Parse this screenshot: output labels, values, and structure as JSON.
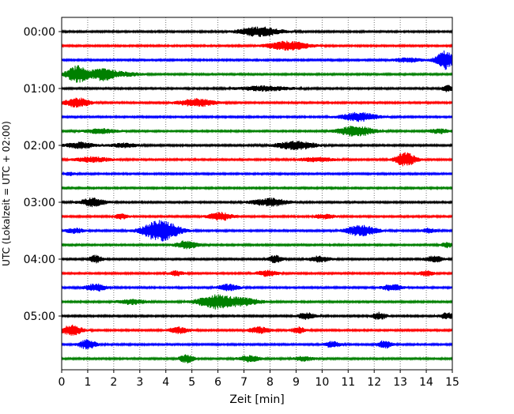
{
  "chart_data": {
    "type": "line",
    "xlabel": "Zeit  [min]",
    "ylabel": "UTC (Lokalzeit = UTC + 02:00)",
    "xlim": [
      0,
      15
    ],
    "x_ticks": [
      "0",
      "1",
      "2",
      "3",
      "4",
      "5",
      "6",
      "7",
      "8",
      "9",
      "10",
      "11",
      "12",
      "13",
      "14",
      "15"
    ],
    "y_ticks": [
      {
        "label": "00:00",
        "trace": 0
      },
      {
        "label": "01:00",
        "trace": 4
      },
      {
        "label": "02:00",
        "trace": 8
      },
      {
        "label": "03:00",
        "trace": 12
      },
      {
        "label": "04:00",
        "trace": 16
      },
      {
        "label": "05:00",
        "trace": 20
      }
    ],
    "grid": "vertical dotted at each minute",
    "trace_interval_min": 15,
    "trace_count": 24,
    "colors": [
      "#000000",
      "#ff0000",
      "#0000ff",
      "#008000"
    ],
    "traces": [
      {
        "start": "00:00",
        "color": "#000000",
        "events": [
          {
            "t": 7.6,
            "amp": 0.9,
            "w": 1.2
          }
        ]
      },
      {
        "start": "00:15",
        "color": "#ff0000",
        "events": [
          {
            "t": 8.7,
            "amp": 0.85,
            "w": 1.2
          }
        ]
      },
      {
        "start": "00:30",
        "color": "#0000ff",
        "events": [
          {
            "t": 14.7,
            "amp": 1.8,
            "w": 0.5
          },
          {
            "t": 13.3,
            "amp": 0.4,
            "w": 0.8
          }
        ]
      },
      {
        "start": "00:45",
        "color": "#008000",
        "events": [
          {
            "t": 0.6,
            "amp": 1.6,
            "w": 0.6
          },
          {
            "t": 1.6,
            "amp": 1.2,
            "w": 0.7
          },
          {
            "t": 2.5,
            "amp": 0.4,
            "w": 0.8
          }
        ]
      },
      {
        "start": "01:00",
        "color": "#000000",
        "events": [
          {
            "t": 7.8,
            "amp": 0.45,
            "w": 1.5
          },
          {
            "t": 14.8,
            "amp": 0.6,
            "w": 0.3
          }
        ]
      },
      {
        "start": "01:15",
        "color": "#ff0000",
        "events": [
          {
            "t": 0.6,
            "amp": 0.9,
            "w": 0.7
          },
          {
            "t": 5.2,
            "amp": 0.75,
            "w": 1.0
          }
        ]
      },
      {
        "start": "01:30",
        "color": "#0000ff",
        "events": [
          {
            "t": 11.4,
            "amp": 0.85,
            "w": 1.0
          }
        ]
      },
      {
        "start": "01:45",
        "color": "#008000",
        "events": [
          {
            "t": 11.3,
            "amp": 1.0,
            "w": 1.0
          },
          {
            "t": 1.5,
            "amp": 0.45,
            "w": 0.9
          },
          {
            "t": 14.5,
            "amp": 0.45,
            "w": 0.6
          }
        ]
      },
      {
        "start": "02:00",
        "color": "#000000",
        "events": [
          {
            "t": 9.0,
            "amp": 0.8,
            "w": 1.1
          },
          {
            "t": 0.7,
            "amp": 0.6,
            "w": 0.8
          },
          {
            "t": 2.4,
            "amp": 0.4,
            "w": 0.8
          }
        ]
      },
      {
        "start": "02:15",
        "color": "#ff0000",
        "events": [
          {
            "t": 13.2,
            "amp": 1.3,
            "w": 0.6
          },
          {
            "t": 1.2,
            "amp": 0.5,
            "w": 1.0
          },
          {
            "t": 9.8,
            "amp": 0.4,
            "w": 1.0
          }
        ]
      },
      {
        "start": "02:30",
        "color": "#0000ff",
        "events": [
          {
            "t": 0.3,
            "amp": 0.3,
            "w": 0.3
          }
        ]
      },
      {
        "start": "02:45",
        "color": "#008000",
        "events": []
      },
      {
        "start": "03:00",
        "color": "#000000",
        "events": [
          {
            "t": 1.2,
            "amp": 0.8,
            "w": 0.7
          },
          {
            "t": 8.0,
            "amp": 0.75,
            "w": 1.0
          }
        ]
      },
      {
        "start": "03:15",
        "color": "#ff0000",
        "events": [
          {
            "t": 6.1,
            "amp": 0.75,
            "w": 0.7
          },
          {
            "t": 2.3,
            "amp": 0.5,
            "w": 0.4
          },
          {
            "t": 10.1,
            "amp": 0.4,
            "w": 0.6
          }
        ]
      },
      {
        "start": "03:30",
        "color": "#0000ff",
        "events": [
          {
            "t": 3.8,
            "amp": 2.1,
            "w": 1.0
          },
          {
            "t": 11.5,
            "amp": 1.0,
            "w": 0.9
          },
          {
            "t": 0.5,
            "amp": 0.5,
            "w": 0.5
          },
          {
            "t": 14.1,
            "amp": 0.45,
            "w": 0.4
          }
        ]
      },
      {
        "start": "03:45",
        "color": "#008000",
        "events": [
          {
            "t": 4.8,
            "amp": 0.8,
            "w": 0.6
          },
          {
            "t": 14.8,
            "amp": 0.5,
            "w": 0.3
          }
        ]
      },
      {
        "start": "04:00",
        "color": "#000000",
        "events": [
          {
            "t": 1.3,
            "amp": 0.7,
            "w": 0.4
          },
          {
            "t": 8.2,
            "amp": 0.7,
            "w": 0.4
          },
          {
            "t": 9.9,
            "amp": 0.55,
            "w": 0.6
          },
          {
            "t": 14.3,
            "amp": 0.6,
            "w": 0.5
          }
        ]
      },
      {
        "start": "04:15",
        "color": "#ff0000",
        "events": [
          {
            "t": 7.9,
            "amp": 0.55,
            "w": 0.6
          },
          {
            "t": 4.4,
            "amp": 0.45,
            "w": 0.4
          },
          {
            "t": 14.0,
            "amp": 0.5,
            "w": 0.4
          }
        ]
      },
      {
        "start": "04:30",
        "color": "#0000ff",
        "events": [
          {
            "t": 1.3,
            "amp": 0.7,
            "w": 0.6
          },
          {
            "t": 6.4,
            "amp": 0.6,
            "w": 0.6
          },
          {
            "t": 12.7,
            "amp": 0.6,
            "w": 0.6
          }
        ]
      },
      {
        "start": "04:45",
        "color": "#008000",
        "events": [
          {
            "t": 5.9,
            "amp": 1.3,
            "w": 1.0
          },
          {
            "t": 7.0,
            "amp": 0.65,
            "w": 1.0
          },
          {
            "t": 2.7,
            "amp": 0.5,
            "w": 0.8
          }
        ]
      },
      {
        "start": "05:00",
        "color": "#000000",
        "events": [
          {
            "t": 9.4,
            "amp": 0.6,
            "w": 0.5
          },
          {
            "t": 12.2,
            "amp": 0.7,
            "w": 0.4
          },
          {
            "t": 14.8,
            "amp": 0.6,
            "w": 0.4
          }
        ]
      },
      {
        "start": "05:15",
        "color": "#ff0000",
        "events": [
          {
            "t": 0.4,
            "amp": 1.0,
            "w": 0.6
          },
          {
            "t": 4.5,
            "amp": 0.6,
            "w": 0.6
          },
          {
            "t": 7.6,
            "amp": 0.6,
            "w": 0.6
          },
          {
            "t": 9.1,
            "amp": 0.6,
            "w": 0.4
          }
        ]
      },
      {
        "start": "05:30",
        "color": "#0000ff",
        "events": [
          {
            "t": 1.0,
            "amp": 0.9,
            "w": 0.5
          },
          {
            "t": 10.4,
            "amp": 0.55,
            "w": 0.5
          },
          {
            "t": 12.4,
            "amp": 0.75,
            "w": 0.4
          }
        ]
      },
      {
        "start": "05:45",
        "color": "#008000",
        "events": [
          {
            "t": 4.8,
            "amp": 0.8,
            "w": 0.4
          },
          {
            "t": 7.2,
            "amp": 0.6,
            "w": 0.6
          },
          {
            "t": 9.3,
            "amp": 0.4,
            "w": 0.6
          }
        ]
      }
    ]
  }
}
